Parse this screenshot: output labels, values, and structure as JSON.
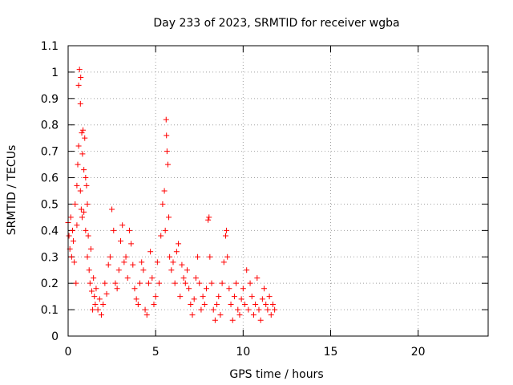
{
  "chart_data": {
    "type": "scatter",
    "title": "Day 233 of 2023, SRMTID for receiver wgba",
    "xlabel": "GPS time / hours",
    "ylabel": "SRMTID / TECUs",
    "xlim": [
      0,
      24
    ],
    "ylim": [
      0,
      1.1
    ],
    "xticks": [
      0,
      5,
      10,
      15,
      20
    ],
    "yticks": [
      0,
      0.1,
      0.2,
      0.3,
      0.4,
      0.5,
      0.6,
      0.7,
      0.8,
      0.9,
      1,
      1.1
    ],
    "grid": true,
    "marker": "+",
    "series": [
      {
        "name": "SRMTID",
        "color": "#ff0000",
        "x": [
          0.0,
          0.05,
          0.1,
          0.15,
          0.2,
          0.25,
          0.3,
          0.35,
          0.4,
          0.45,
          0.5,
          0.5,
          0.55,
          0.6,
          0.6,
          0.65,
          0.7,
          0.7,
          0.72,
          0.75,
          0.78,
          0.8,
          0.82,
          0.85,
          0.9,
          0.9,
          0.95,
          1.0,
          1.0,
          1.05,
          1.1,
          1.1,
          1.15,
          1.2,
          1.25,
          1.3,
          1.35,
          1.4,
          1.45,
          1.5,
          1.55,
          1.6,
          1.7,
          1.8,
          1.9,
          2.0,
          2.1,
          2.2,
          2.3,
          2.4,
          2.5,
          2.6,
          2.7,
          2.8,
          2.9,
          3.0,
          3.1,
          3.2,
          3.3,
          3.4,
          3.5,
          3.6,
          3.7,
          3.8,
          3.9,
          4.0,
          4.1,
          4.2,
          4.3,
          4.4,
          4.5,
          4.6,
          4.7,
          4.8,
          4.9,
          5.0,
          5.1,
          5.2,
          5.3,
          5.4,
          5.5,
          5.55,
          5.6,
          5.62,
          5.65,
          5.7,
          5.75,
          5.8,
          5.9,
          6.0,
          6.1,
          6.2,
          6.3,
          6.4,
          6.5,
          6.6,
          6.7,
          6.8,
          6.9,
          7.0,
          7.1,
          7.2,
          7.3,
          7.4,
          7.5,
          7.6,
          7.7,
          7.8,
          7.9,
          8.0,
          8.05,
          8.1,
          8.2,
          8.3,
          8.4,
          8.5,
          8.6,
          8.7,
          8.8,
          8.9,
          9.0,
          9.05,
          9.1,
          9.2,
          9.3,
          9.4,
          9.5,
          9.6,
          9.7,
          9.8,
          9.9,
          10.0,
          10.1,
          10.2,
          10.3,
          10.4,
          10.5,
          10.6,
          10.7,
          10.8,
          10.9,
          11.0,
          11.1,
          11.2,
          11.3,
          11.4,
          11.5,
          11.6,
          11.7,
          11.8
        ],
        "y": [
          0.43,
          0.38,
          0.33,
          0.45,
          0.3,
          0.4,
          0.36,
          0.28,
          0.5,
          0.2,
          0.42,
          0.57,
          0.65,
          0.95,
          0.72,
          1.01,
          0.88,
          0.55,
          0.98,
          0.48,
          0.77,
          0.45,
          0.69,
          0.78,
          0.63,
          0.47,
          0.75,
          0.6,
          0.4,
          0.57,
          0.5,
          0.3,
          0.38,
          0.25,
          0.2,
          0.33,
          0.17,
          0.1,
          0.22,
          0.15,
          0.12,
          0.18,
          0.1,
          0.14,
          0.08,
          0.12,
          0.2,
          0.16,
          0.27,
          0.3,
          0.48,
          0.4,
          0.2,
          0.18,
          0.25,
          0.36,
          0.42,
          0.28,
          0.3,
          0.22,
          0.4,
          0.35,
          0.27,
          0.18,
          0.14,
          0.12,
          0.2,
          0.28,
          0.25,
          0.1,
          0.08,
          0.2,
          0.32,
          0.22,
          0.12,
          0.15,
          0.28,
          0.2,
          0.38,
          0.5,
          0.55,
          0.4,
          0.82,
          0.76,
          0.7,
          0.65,
          0.45,
          0.3,
          0.25,
          0.28,
          0.2,
          0.32,
          0.35,
          0.15,
          0.27,
          0.22,
          0.2,
          0.25,
          0.18,
          0.12,
          0.08,
          0.14,
          0.22,
          0.3,
          0.2,
          0.1,
          0.15,
          0.12,
          0.18,
          0.44,
          0.45,
          0.3,
          0.2,
          0.1,
          0.06,
          0.12,
          0.15,
          0.08,
          0.2,
          0.28,
          0.38,
          0.4,
          0.3,
          0.18,
          0.12,
          0.06,
          0.15,
          0.2,
          0.1,
          0.08,
          0.14,
          0.18,
          0.12,
          0.25,
          0.1,
          0.2,
          0.15,
          0.08,
          0.12,
          0.22,
          0.1,
          0.06,
          0.14,
          0.18,
          0.12,
          0.1,
          0.15,
          0.08,
          0.12,
          0.1
        ]
      }
    ]
  }
}
